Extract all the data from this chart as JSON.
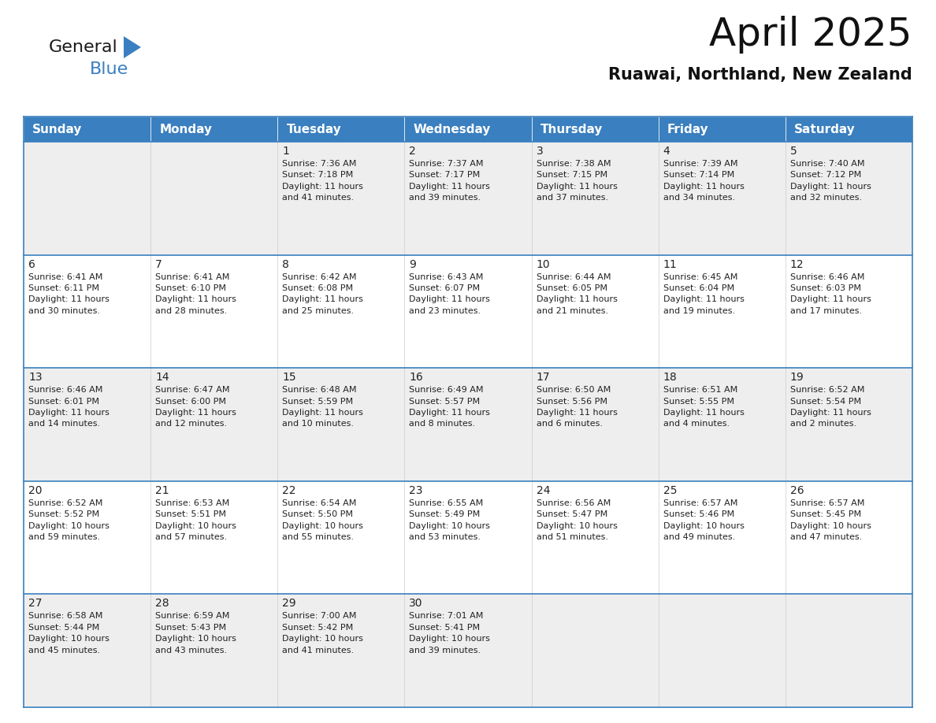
{
  "title": "April 2025",
  "subtitle": "Ruawai, Northland, New Zealand",
  "header_color": "#3a7fbf",
  "header_text_color": "#ffffff",
  "cell_bg_light": "#eeeeee",
  "cell_bg_white": "#ffffff",
  "border_color": "#3a7fbf",
  "text_color": "#222222",
  "logo_general_color": "#1a1a1a",
  "logo_blue_color": "#3a7fbf",
  "logo_triangle_color": "#3a7fbf",
  "days_of_week": [
    "Sunday",
    "Monday",
    "Tuesday",
    "Wednesday",
    "Thursday",
    "Friday",
    "Saturday"
  ],
  "weeks": [
    [
      {
        "day": "",
        "info": ""
      },
      {
        "day": "",
        "info": ""
      },
      {
        "day": "1",
        "info": "Sunrise: 7:36 AM\nSunset: 7:18 PM\nDaylight: 11 hours\nand 41 minutes."
      },
      {
        "day": "2",
        "info": "Sunrise: 7:37 AM\nSunset: 7:17 PM\nDaylight: 11 hours\nand 39 minutes."
      },
      {
        "day": "3",
        "info": "Sunrise: 7:38 AM\nSunset: 7:15 PM\nDaylight: 11 hours\nand 37 minutes."
      },
      {
        "day": "4",
        "info": "Sunrise: 7:39 AM\nSunset: 7:14 PM\nDaylight: 11 hours\nand 34 minutes."
      },
      {
        "day": "5",
        "info": "Sunrise: 7:40 AM\nSunset: 7:12 PM\nDaylight: 11 hours\nand 32 minutes."
      }
    ],
    [
      {
        "day": "6",
        "info": "Sunrise: 6:41 AM\nSunset: 6:11 PM\nDaylight: 11 hours\nand 30 minutes."
      },
      {
        "day": "7",
        "info": "Sunrise: 6:41 AM\nSunset: 6:10 PM\nDaylight: 11 hours\nand 28 minutes."
      },
      {
        "day": "8",
        "info": "Sunrise: 6:42 AM\nSunset: 6:08 PM\nDaylight: 11 hours\nand 25 minutes."
      },
      {
        "day": "9",
        "info": "Sunrise: 6:43 AM\nSunset: 6:07 PM\nDaylight: 11 hours\nand 23 minutes."
      },
      {
        "day": "10",
        "info": "Sunrise: 6:44 AM\nSunset: 6:05 PM\nDaylight: 11 hours\nand 21 minutes."
      },
      {
        "day": "11",
        "info": "Sunrise: 6:45 AM\nSunset: 6:04 PM\nDaylight: 11 hours\nand 19 minutes."
      },
      {
        "day": "12",
        "info": "Sunrise: 6:46 AM\nSunset: 6:03 PM\nDaylight: 11 hours\nand 17 minutes."
      }
    ],
    [
      {
        "day": "13",
        "info": "Sunrise: 6:46 AM\nSunset: 6:01 PM\nDaylight: 11 hours\nand 14 minutes."
      },
      {
        "day": "14",
        "info": "Sunrise: 6:47 AM\nSunset: 6:00 PM\nDaylight: 11 hours\nand 12 minutes."
      },
      {
        "day": "15",
        "info": "Sunrise: 6:48 AM\nSunset: 5:59 PM\nDaylight: 11 hours\nand 10 minutes."
      },
      {
        "day": "16",
        "info": "Sunrise: 6:49 AM\nSunset: 5:57 PM\nDaylight: 11 hours\nand 8 minutes."
      },
      {
        "day": "17",
        "info": "Sunrise: 6:50 AM\nSunset: 5:56 PM\nDaylight: 11 hours\nand 6 minutes."
      },
      {
        "day": "18",
        "info": "Sunrise: 6:51 AM\nSunset: 5:55 PM\nDaylight: 11 hours\nand 4 minutes."
      },
      {
        "day": "19",
        "info": "Sunrise: 6:52 AM\nSunset: 5:54 PM\nDaylight: 11 hours\nand 2 minutes."
      }
    ],
    [
      {
        "day": "20",
        "info": "Sunrise: 6:52 AM\nSunset: 5:52 PM\nDaylight: 10 hours\nand 59 minutes."
      },
      {
        "day": "21",
        "info": "Sunrise: 6:53 AM\nSunset: 5:51 PM\nDaylight: 10 hours\nand 57 minutes."
      },
      {
        "day": "22",
        "info": "Sunrise: 6:54 AM\nSunset: 5:50 PM\nDaylight: 10 hours\nand 55 minutes."
      },
      {
        "day": "23",
        "info": "Sunrise: 6:55 AM\nSunset: 5:49 PM\nDaylight: 10 hours\nand 53 minutes."
      },
      {
        "day": "24",
        "info": "Sunrise: 6:56 AM\nSunset: 5:47 PM\nDaylight: 10 hours\nand 51 minutes."
      },
      {
        "day": "25",
        "info": "Sunrise: 6:57 AM\nSunset: 5:46 PM\nDaylight: 10 hours\nand 49 minutes."
      },
      {
        "day": "26",
        "info": "Sunrise: 6:57 AM\nSunset: 5:45 PM\nDaylight: 10 hours\nand 47 minutes."
      }
    ],
    [
      {
        "day": "27",
        "info": "Sunrise: 6:58 AM\nSunset: 5:44 PM\nDaylight: 10 hours\nand 45 minutes."
      },
      {
        "day": "28",
        "info": "Sunrise: 6:59 AM\nSunset: 5:43 PM\nDaylight: 10 hours\nand 43 minutes."
      },
      {
        "day": "29",
        "info": "Sunrise: 7:00 AM\nSunset: 5:42 PM\nDaylight: 10 hours\nand 41 minutes."
      },
      {
        "day": "30",
        "info": "Sunrise: 7:01 AM\nSunset: 5:41 PM\nDaylight: 10 hours\nand 39 minutes."
      },
      {
        "day": "",
        "info": ""
      },
      {
        "day": "",
        "info": ""
      },
      {
        "day": "",
        "info": ""
      }
    ]
  ],
  "fig_width": 11.88,
  "fig_height": 9.18,
  "dpi": 100,
  "title_fontsize": 36,
  "subtitle_fontsize": 15,
  "header_fontsize": 11,
  "day_num_fontsize": 10,
  "info_fontsize": 8
}
